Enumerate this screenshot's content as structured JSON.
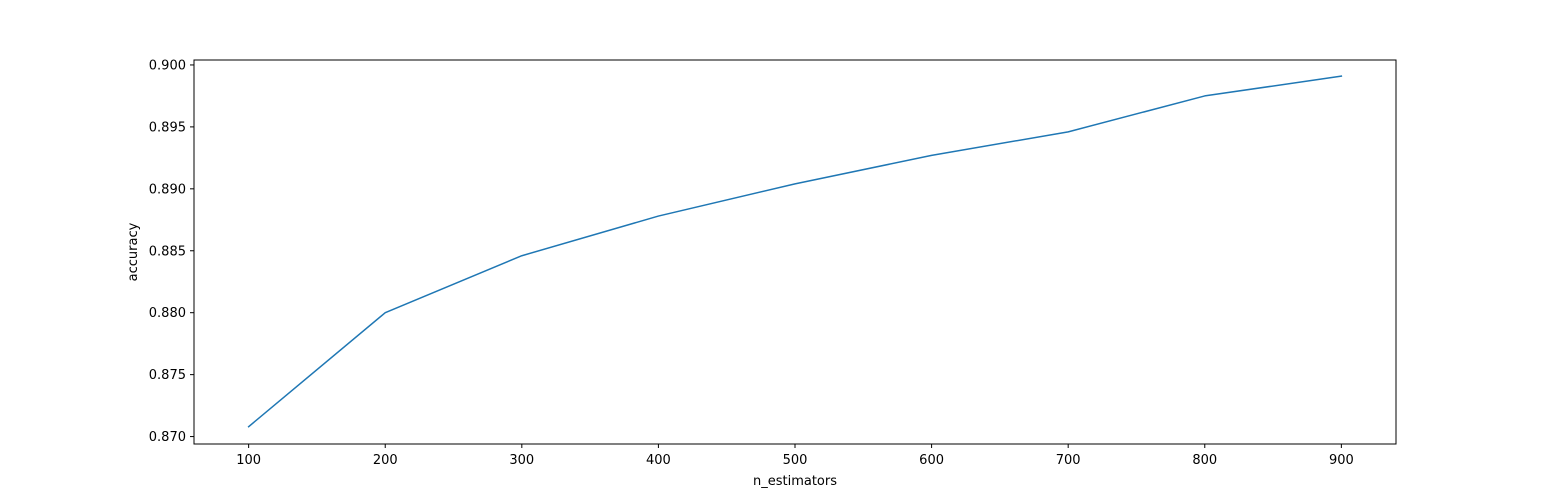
{
  "chart_data": {
    "type": "line",
    "title": "",
    "xlabel": "n_estimators",
    "ylabel": "accuracy",
    "x": [
      100,
      200,
      300,
      400,
      500,
      600,
      700,
      800,
      900
    ],
    "series": [
      {
        "values": [
          0.8708,
          0.88,
          0.8846,
          0.8878,
          0.8904,
          0.8927,
          0.8946,
          0.8975,
          0.8991
        ],
        "color": "#1f77b4"
      }
    ],
    "xlim": [
      60,
      940
    ],
    "ylim": [
      0.8694,
      0.9004
    ],
    "xticks": [
      100,
      200,
      300,
      400,
      500,
      600,
      700,
      800,
      900
    ],
    "xtick_labels": [
      "100",
      "200",
      "300",
      "400",
      "500",
      "600",
      "700",
      "800",
      "900"
    ],
    "yticks": [
      0.87,
      0.875,
      0.88,
      0.885,
      0.89,
      0.895,
      0.9
    ],
    "ytick_labels": [
      "0.870",
      "0.875",
      "0.880",
      "0.885",
      "0.890",
      "0.895",
      "0.900"
    ],
    "grid": false,
    "legend": false
  }
}
